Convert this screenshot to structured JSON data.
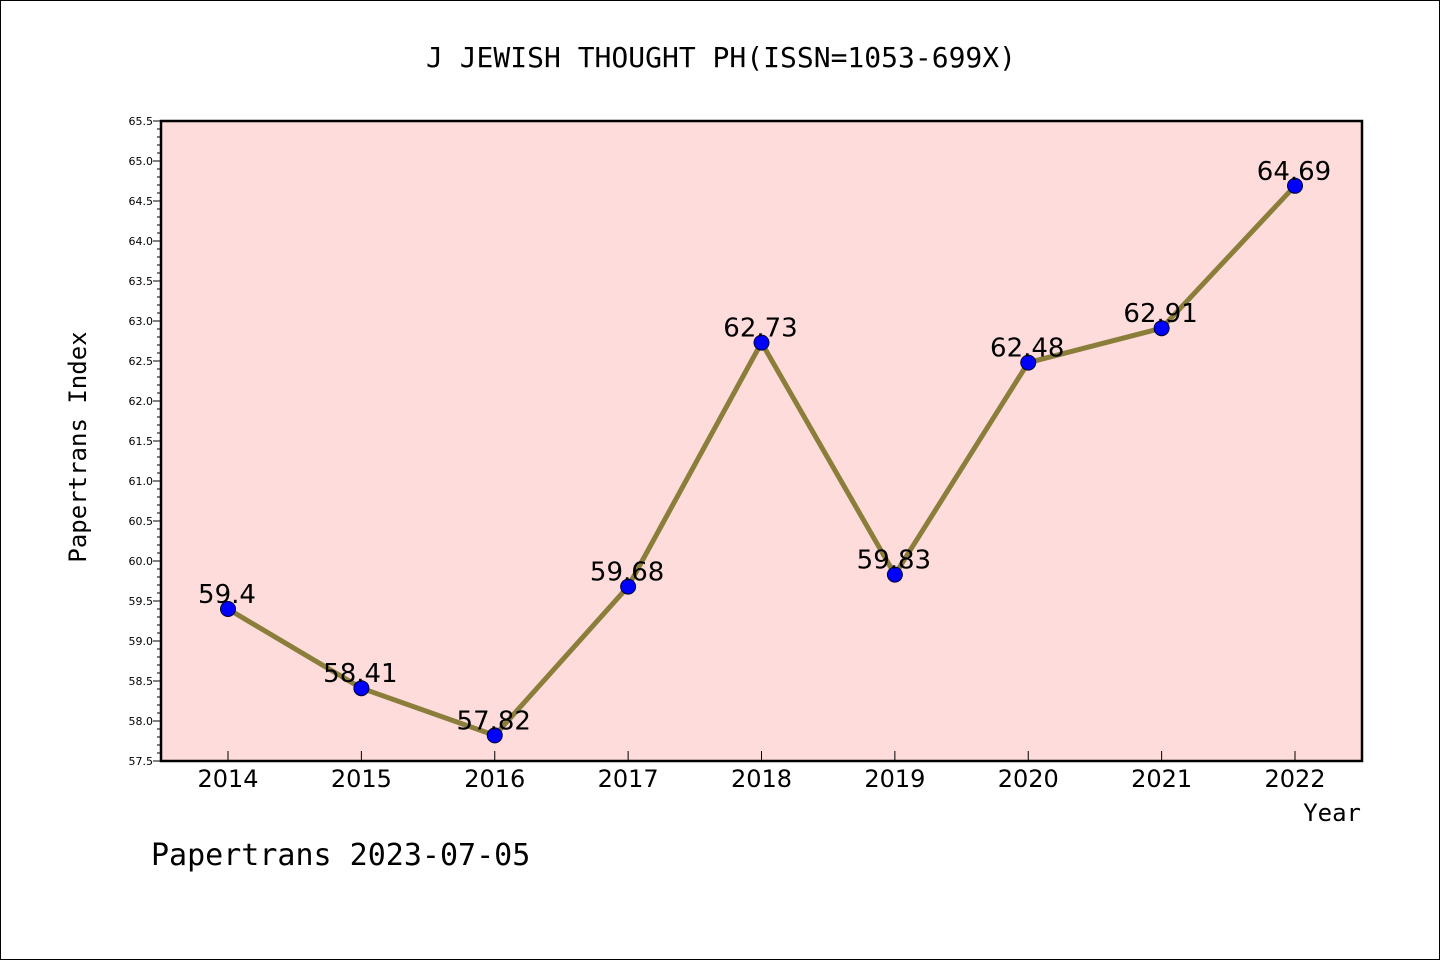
{
  "chart_data": {
    "type": "line",
    "title": "J JEWISH THOUGHT PH(ISSN=1053-699X)",
    "xlabel": "Year",
    "ylabel": "Papertrans Index",
    "categories": [
      "2014",
      "2015",
      "2016",
      "2017",
      "2018",
      "2019",
      "2020",
      "2021",
      "2022"
    ],
    "values": [
      59.4,
      58.41,
      57.82,
      59.68,
      62.73,
      59.83,
      62.48,
      62.91,
      64.69
    ],
    "data_labels": [
      "59.4",
      "58.41",
      "57.82",
      "59.68",
      "62.73",
      "59.83",
      "62.48",
      "62.91",
      "64.69"
    ],
    "ylim": [
      57.5,
      65.5
    ],
    "yticks": [
      "57.5",
      "58.0",
      "58.5",
      "59.0",
      "59.5",
      "60.0",
      "60.5",
      "61.0",
      "61.5",
      "62.0",
      "62.5",
      "63.0",
      "63.5",
      "64.0",
      "64.5",
      "65.0",
      "65.5"
    ],
    "grid": false,
    "legend": "none",
    "colors": {
      "plot_background": "#fddcdb",
      "line": "#8b7d3a",
      "marker": "#0000ff"
    }
  },
  "footer": {
    "text": "Papertrans 2023-07-05"
  }
}
